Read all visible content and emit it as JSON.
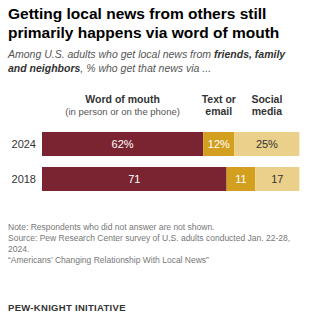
{
  "chart_data": {
    "type": "bar",
    "title": "Getting local news from others still primarily happens via word of mouth",
    "subtitle": [
      "Among U.S. adults who get local news from ",
      "friends, family and neighbors",
      ", % who get that news via ..."
    ],
    "orientation": "horizontal",
    "stacked": true,
    "data_labels": true,
    "tick_labels": "y",
    "legend": "top",
    "xlim": [
      0,
      100
    ],
    "categories": [
      "2024",
      "2018"
    ],
    "series": [
      {
        "name": "Word of mouth",
        "color": "#7a2432",
        "values": [
          62,
          71
        ],
        "value_labels": [
          "62%",
          "71"
        ]
      },
      {
        "name": "Text or email",
        "color": "#d39f1f",
        "values": [
          12,
          11
        ],
        "value_labels": [
          "12%",
          "11"
        ]
      },
      {
        "name": "Social media",
        "color": "#ead08a",
        "values": [
          25,
          17
        ],
        "value_labels": [
          "25%",
          "17"
        ]
      }
    ],
    "annotations": [
      "(in person or on the phone)"
    ],
    "notes": [
      "Note: Respondents who did not answer are not shown.",
      "Source: Pew Research Center survey of U.S. adults conducted Jan. 22-28, 2024.",
      "“Americans’ Changing Relationship With Local News”"
    ],
    "footer": "PEW-KNIGHT INITIATIVE"
  }
}
